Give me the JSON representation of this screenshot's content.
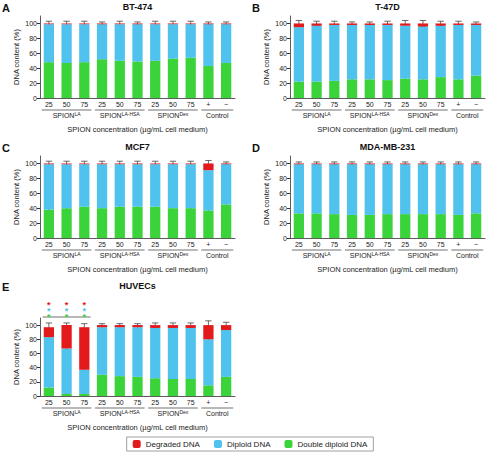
{
  "chart_data": [
    {
      "type": "bar",
      "label": "A",
      "title": "BT-474",
      "stacked": true,
      "grid": false,
      "x_label": "SPION concentration (µg/mL cell medium)",
      "y_label": "DNA content (%)",
      "groups": [
        {
          "name": "SPION",
          "superscript": "LA",
          "ticks": [
            "25",
            "50",
            "75"
          ]
        },
        {
          "name": "SPION",
          "superscript": "LA-HSA",
          "ticks": [
            "25",
            "50",
            "75"
          ]
        },
        {
          "name": "SPION",
          "superscript": "Dex",
          "ticks": [
            "25",
            "50",
            "75"
          ]
        },
        {
          "name": "Control",
          "ticks": [
            "+",
            "−"
          ]
        }
      ],
      "ylim": [
        0,
        110
      ],
      "yticks": [
        0,
        20,
        40,
        60,
        80,
        100
      ],
      "series": [
        {
          "name": "Degraded DNA",
          "color": "#e31a1c",
          "values": [
            1,
            1,
            1,
            1,
            1,
            1,
            1,
            1,
            1,
            1,
            1
          ],
          "errors": [
            3,
            3,
            3,
            2,
            3,
            2,
            3,
            3,
            3,
            2,
            2
          ]
        },
        {
          "name": "Diploid DNA",
          "color": "#4fc3ee",
          "values": [
            51,
            52,
            51,
            47,
            49,
            50,
            49,
            46,
            45,
            56,
            52
          ]
        },
        {
          "name": "Double diploid DNA",
          "color": "#3ad33a",
          "values": [
            48,
            47,
            48,
            52,
            50,
            49,
            50,
            53,
            54,
            43,
            47
          ],
          "errors": [
            4,
            5,
            5,
            4,
            4,
            5,
            5,
            5,
            6,
            3,
            4
          ]
        }
      ]
    },
    {
      "type": "bar",
      "label": "B",
      "title": "T-47D",
      "stacked": true,
      "grid": false,
      "x_label": "SPION concentration (µg/mL cell medium)",
      "y_label": "DNA content (%)",
      "groups": [
        {
          "name": "SPION",
          "superscript": "LA",
          "ticks": [
            "25",
            "50",
            "75"
          ]
        },
        {
          "name": "SPION",
          "superscript": "LA-HSA",
          "ticks": [
            "25",
            "50",
            "75"
          ]
        },
        {
          "name": "SPION",
          "superscript": "Dex",
          "ticks": [
            "25",
            "50",
            "75"
          ]
        },
        {
          "name": "Control",
          "ticks": [
            "+",
            "−"
          ]
        }
      ],
      "ylim": [
        0,
        110
      ],
      "yticks": [
        0,
        20,
        40,
        60,
        80,
        100
      ],
      "series": [
        {
          "name": "Degraded DNA",
          "color": "#e31a1c",
          "values": [
            5,
            3,
            2,
            2,
            2,
            2,
            3,
            4,
            3,
            2,
            2
          ],
          "errors": [
            4,
            3,
            3,
            2,
            2,
            3,
            4,
            4,
            3,
            3,
            2
          ]
        },
        {
          "name": "Diploid DNA",
          "color": "#4fc3ee",
          "values": [
            73,
            75,
            75,
            73,
            73,
            74,
            71,
            71,
            69,
            73,
            68
          ]
        },
        {
          "name": "Double diploid DNA",
          "color": "#3ad33a",
          "values": [
            22,
            22,
            23,
            25,
            25,
            24,
            26,
            25,
            28,
            25,
            30
          ],
          "errors": [
            5,
            4,
            4,
            5,
            4,
            4,
            4,
            4,
            4,
            4,
            4
          ]
        }
      ]
    },
    {
      "type": "bar",
      "label": "C",
      "title": "MCF7",
      "stacked": true,
      "grid": false,
      "x_label": "SPION concentration (µg/mL cell medium)",
      "y_label": "DNA content (%)",
      "groups": [
        {
          "name": "SPION",
          "superscript": "LA",
          "ticks": [
            "25",
            "50",
            "75"
          ]
        },
        {
          "name": "SPION",
          "superscript": "LA-HSA",
          "ticks": [
            "25",
            "50",
            "75"
          ]
        },
        {
          "name": "SPION",
          "superscript": "Dex",
          "ticks": [
            "25",
            "50",
            "75"
          ]
        },
        {
          "name": "Control",
          "ticks": [
            "+",
            "−"
          ]
        }
      ],
      "ylim": [
        0,
        110
      ],
      "yticks": [
        0,
        20,
        40,
        60,
        80,
        100
      ],
      "series": [
        {
          "name": "Degraded DNA",
          "color": "#e31a1c",
          "values": [
            1,
            1,
            1,
            1,
            1,
            1,
            1,
            1,
            1,
            9,
            1
          ],
          "errors": [
            3,
            3,
            3,
            3,
            3,
            3,
            3,
            3,
            3,
            4,
            2
          ]
        },
        {
          "name": "Diploid DNA",
          "color": "#4fc3ee",
          "values": [
            61,
            59,
            57,
            59,
            57,
            57,
            57,
            59,
            59,
            54,
            54
          ]
        },
        {
          "name": "Double diploid DNA",
          "color": "#3ad33a",
          "values": [
            38,
            40,
            42,
            40,
            42,
            42,
            42,
            40,
            40,
            37,
            45
          ],
          "errors": [
            5,
            5,
            5,
            5,
            5,
            5,
            5,
            5,
            4,
            4,
            4
          ]
        }
      ]
    },
    {
      "type": "bar",
      "label": "D",
      "title": "MDA-MB-231",
      "stacked": true,
      "grid": false,
      "x_label": "SPION concentration (µg/mL cell medium)",
      "y_label": "DNA content (%)",
      "groups": [
        {
          "name": "SPION",
          "superscript": "LA",
          "ticks": [
            "25",
            "50",
            "75"
          ]
        },
        {
          "name": "SPION",
          "superscript": "LA-HSA",
          "ticks": [
            "25",
            "50",
            "75"
          ]
        },
        {
          "name": "SPION",
          "superscript": "Dex",
          "ticks": [
            "25",
            "50",
            "75"
          ]
        },
        {
          "name": "Control",
          "ticks": [
            "+",
            "−"
          ]
        }
      ],
      "ylim": [
        0,
        110
      ],
      "yticks": [
        0,
        20,
        40,
        60,
        80,
        100
      ],
      "series": [
        {
          "name": "Degraded DNA",
          "color": "#e31a1c",
          "values": [
            1,
            1,
            1,
            1,
            1,
            1,
            1,
            1,
            1,
            1,
            1
          ],
          "errors": [
            2,
            2,
            2,
            2,
            2,
            2,
            2,
            2,
            2,
            2,
            2
          ]
        },
        {
          "name": "Diploid DNA",
          "color": "#4fc3ee",
          "values": [
            66,
            66,
            67,
            68,
            68,
            67,
            67,
            67,
            67,
            68,
            66
          ]
        },
        {
          "name": "Double diploid DNA",
          "color": "#3ad33a",
          "values": [
            33,
            33,
            32,
            31,
            31,
            32,
            32,
            32,
            32,
            31,
            33
          ],
          "errors": [
            4,
            4,
            4,
            4,
            4,
            4,
            4,
            4,
            4,
            4,
            4
          ]
        }
      ]
    },
    {
      "type": "bar",
      "label": "E",
      "title": "HUVECs",
      "stacked": true,
      "grid": false,
      "legend": "bottom",
      "x_label": "SPION concentration (µg/mL cell medium)",
      "y_label": "DNA content (%)",
      "groups": [
        {
          "name": "SPION",
          "superscript": "LA",
          "ticks": [
            "25",
            "50",
            "75"
          ]
        },
        {
          "name": "SPION",
          "superscript": "LA-HSA",
          "ticks": [
            "25",
            "50",
            "75"
          ]
        },
        {
          "name": "SPION",
          "superscript": "Dex",
          "ticks": [
            "25",
            "50",
            "75"
          ]
        },
        {
          "name": "Control",
          "ticks": [
            "+",
            "−"
          ]
        }
      ],
      "ylim": [
        0,
        110
      ],
      "yticks": [
        0,
        20,
        40,
        60,
        80,
        100
      ],
      "significance": {
        "text": "*",
        "categories": [
          0,
          1,
          2
        ],
        "series": [
          "Double diploid DNA",
          "Diploid DNA",
          "Degraded DNA"
        ]
      },
      "series": [
        {
          "name": "Degraded DNA",
          "color": "#e31a1c",
          "values": [
            14,
            33,
            60,
            3,
            3,
            3,
            4,
            4,
            4,
            20,
            7
          ],
          "errors": [
            6,
            3,
            5,
            2,
            2,
            2,
            3,
            3,
            3,
            6,
            4
          ]
        },
        {
          "name": "Diploid DNA",
          "color": "#4fc3ee",
          "values": [
            71,
            64,
            34,
            67,
            69,
            70,
            71,
            72,
            72,
            65,
            66
          ],
          "errors": [
            8,
            30,
            4,
            2,
            2,
            2,
            2,
            2,
            2,
            5,
            3
          ]
        },
        {
          "name": "Double diploid DNA",
          "color": "#3ad33a",
          "values": [
            12,
            3,
            3,
            30,
            28,
            27,
            25,
            24,
            24,
            15,
            27
          ],
          "errors": [
            4,
            1,
            1,
            4,
            4,
            4,
            4,
            4,
            3,
            3,
            4
          ]
        }
      ]
    }
  ]
}
